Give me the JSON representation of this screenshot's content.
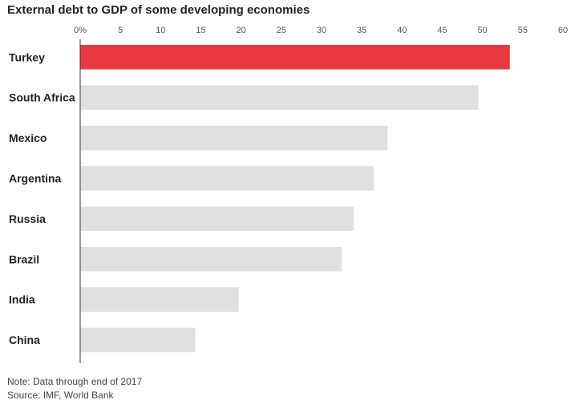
{
  "chart_data": {
    "type": "bar",
    "orientation": "horizontal",
    "title": "External debt to GDP of some developing economies",
    "categories": [
      "Turkey",
      "South Africa",
      "Mexico",
      "Argentina",
      "Russia",
      "Brazil",
      "India",
      "China"
    ],
    "values": [
      53.4,
      49.5,
      38.2,
      36.5,
      34.0,
      32.5,
      19.7,
      14.3
    ],
    "xlim": [
      0,
      60
    ],
    "x_ticks": [
      0,
      5,
      10,
      15,
      20,
      25,
      30,
      35,
      40,
      45,
      50,
      55,
      60
    ],
    "x_tick_labels": [
      "0%",
      "5",
      "10",
      "15",
      "20",
      "25",
      "30",
      "35",
      "40",
      "45",
      "50",
      "55",
      "60"
    ],
    "axis_position": "top",
    "grid": false,
    "highlight_category": "Turkey",
    "colors": {
      "highlight": "#e8393f",
      "default": "#e0e0e0",
      "axis": "#333333"
    }
  },
  "notes": {
    "note": "Note: Data through end of 2017",
    "source": "Source: IMF, World Bank"
  }
}
